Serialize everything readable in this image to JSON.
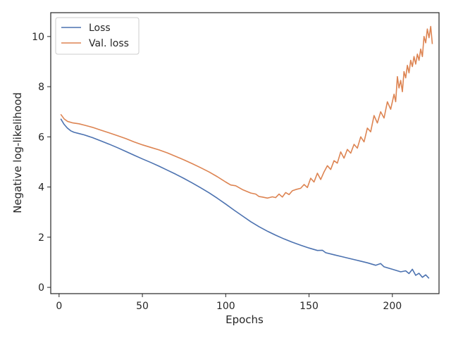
{
  "chart_data": {
    "type": "line",
    "title": "",
    "xlabel": "Epochs",
    "ylabel": "Negative log-likelihood",
    "xlim": [
      -5,
      228
    ],
    "ylim": [
      -0.25,
      10.95
    ],
    "xticks": [
      0,
      50,
      100,
      150,
      200
    ],
    "yticks": [
      0,
      2,
      4,
      6,
      8,
      10
    ],
    "grid": false,
    "legend_position": "top-left",
    "series": [
      {
        "name": "Loss",
        "color": "#4c72b0",
        "points": [
          [
            1,
            6.72
          ],
          [
            3,
            6.5
          ],
          [
            5,
            6.35
          ],
          [
            7,
            6.24
          ],
          [
            9,
            6.18
          ],
          [
            12,
            6.13
          ],
          [
            15,
            6.08
          ],
          [
            20,
            5.97
          ],
          [
            25,
            5.84
          ],
          [
            30,
            5.71
          ],
          [
            35,
            5.57
          ],
          [
            40,
            5.42
          ],
          [
            45,
            5.27
          ],
          [
            50,
            5.12
          ],
          [
            55,
            4.98
          ],
          [
            60,
            4.83
          ],
          [
            65,
            4.67
          ],
          [
            70,
            4.51
          ],
          [
            75,
            4.34
          ],
          [
            80,
            4.16
          ],
          [
            85,
            3.97
          ],
          [
            90,
            3.77
          ],
          [
            95,
            3.55
          ],
          [
            100,
            3.32
          ],
          [
            105,
            3.08
          ],
          [
            110,
            2.85
          ],
          [
            115,
            2.62
          ],
          [
            120,
            2.42
          ],
          [
            125,
            2.24
          ],
          [
            130,
            2.08
          ],
          [
            135,
            1.93
          ],
          [
            140,
            1.8
          ],
          [
            145,
            1.68
          ],
          [
            150,
            1.57
          ],
          [
            155,
            1.47
          ],
          [
            158,
            1.48
          ],
          [
            160,
            1.38
          ],
          [
            165,
            1.3
          ],
          [
            170,
            1.22
          ],
          [
            175,
            1.14
          ],
          [
            180,
            1.06
          ],
          [
            185,
            0.98
          ],
          [
            190,
            0.88
          ],
          [
            193,
            0.95
          ],
          [
            195,
            0.82
          ],
          [
            200,
            0.72
          ],
          [
            205,
            0.62
          ],
          [
            208,
            0.66
          ],
          [
            210,
            0.55
          ],
          [
            212,
            0.72
          ],
          [
            214,
            0.48
          ],
          [
            216,
            0.56
          ],
          [
            218,
            0.4
          ],
          [
            220,
            0.5
          ],
          [
            222,
            0.36
          ]
        ]
      },
      {
        "name": "Val. loss",
        "color": "#dd8452",
        "points": [
          [
            1,
            6.9
          ],
          [
            3,
            6.72
          ],
          [
            5,
            6.62
          ],
          [
            8,
            6.56
          ],
          [
            12,
            6.52
          ],
          [
            15,
            6.47
          ],
          [
            20,
            6.38
          ],
          [
            25,
            6.27
          ],
          [
            30,
            6.16
          ],
          [
            35,
            6.05
          ],
          [
            40,
            5.93
          ],
          [
            45,
            5.8
          ],
          [
            50,
            5.68
          ],
          [
            55,
            5.58
          ],
          [
            60,
            5.48
          ],
          [
            65,
            5.36
          ],
          [
            70,
            5.22
          ],
          [
            75,
            5.08
          ],
          [
            80,
            4.93
          ],
          [
            85,
            4.77
          ],
          [
            90,
            4.6
          ],
          [
            95,
            4.41
          ],
          [
            100,
            4.2
          ],
          [
            103,
            4.08
          ],
          [
            106,
            4.05
          ],
          [
            110,
            3.9
          ],
          [
            115,
            3.76
          ],
          [
            118,
            3.72
          ],
          [
            120,
            3.62
          ],
          [
            122,
            3.6
          ],
          [
            125,
            3.56
          ],
          [
            128,
            3.61
          ],
          [
            130,
            3.58
          ],
          [
            132,
            3.72
          ],
          [
            134,
            3.6
          ],
          [
            136,
            3.78
          ],
          [
            138,
            3.7
          ],
          [
            140,
            3.85
          ],
          [
            142,
            3.9
          ],
          [
            145,
            3.95
          ],
          [
            147,
            4.1
          ],
          [
            149,
            3.98
          ],
          [
            151,
            4.35
          ],
          [
            153,
            4.2
          ],
          [
            155,
            4.55
          ],
          [
            157,
            4.3
          ],
          [
            159,
            4.6
          ],
          [
            161,
            4.85
          ],
          [
            163,
            4.7
          ],
          [
            165,
            5.05
          ],
          [
            167,
            4.95
          ],
          [
            169,
            5.4
          ],
          [
            171,
            5.15
          ],
          [
            173,
            5.5
          ],
          [
            175,
            5.35
          ],
          [
            177,
            5.7
          ],
          [
            179,
            5.55
          ],
          [
            181,
            6.0
          ],
          [
            183,
            5.8
          ],
          [
            185,
            6.35
          ],
          [
            187,
            6.2
          ],
          [
            189,
            6.85
          ],
          [
            191,
            6.55
          ],
          [
            193,
            7.0
          ],
          [
            195,
            6.75
          ],
          [
            197,
            7.4
          ],
          [
            199,
            7.1
          ],
          [
            201,
            7.7
          ],
          [
            202,
            7.4
          ],
          [
            203,
            8.4
          ],
          [
            204,
            7.95
          ],
          [
            205,
            8.25
          ],
          [
            206,
            7.8
          ],
          [
            207,
            8.6
          ],
          [
            208,
            8.35
          ],
          [
            209,
            8.85
          ],
          [
            210,
            8.55
          ],
          [
            211,
            9.05
          ],
          [
            212,
            8.8
          ],
          [
            213,
            9.2
          ],
          [
            214,
            8.9
          ],
          [
            215,
            9.3
          ],
          [
            216,
            9.05
          ],
          [
            217,
            9.5
          ],
          [
            218,
            9.2
          ],
          [
            219,
            10.0
          ],
          [
            220,
            9.75
          ],
          [
            221,
            10.3
          ],
          [
            222,
            9.95
          ],
          [
            223,
            10.4
          ],
          [
            224,
            9.7
          ]
        ]
      }
    ]
  }
}
